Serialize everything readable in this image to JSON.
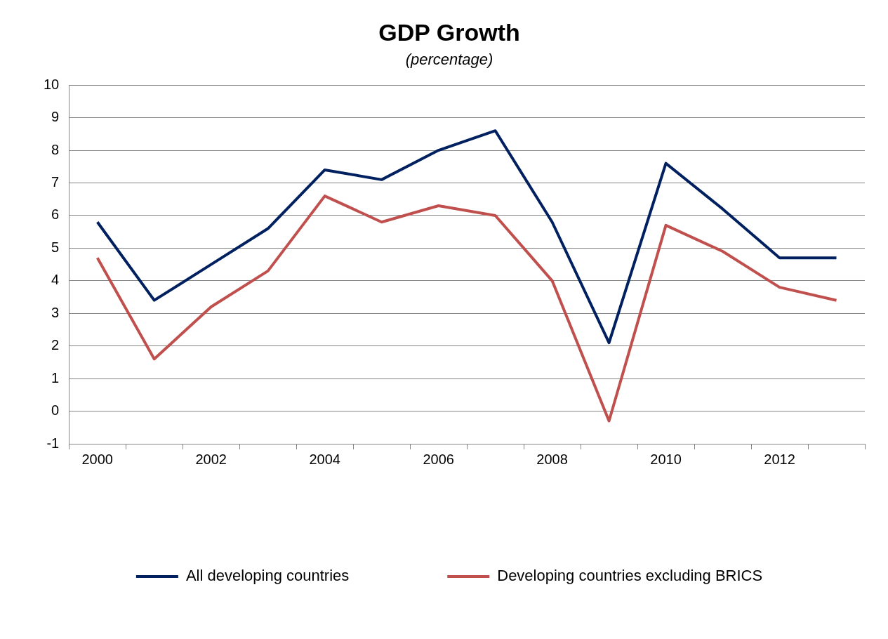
{
  "chart_data": {
    "type": "line",
    "title": "GDP Growth",
    "subtitle": "(percentage)",
    "categories": [
      "2000",
      null,
      "2002",
      null,
      "2004",
      null,
      "2006",
      null,
      "2008",
      null,
      "2010",
      null,
      "2012",
      null
    ],
    "series": [
      {
        "name": "All developing countries",
        "color": "#002060",
        "values": [
          5.8,
          3.4,
          4.5,
          5.6,
          7.4,
          7.1,
          8.0,
          8.6,
          5.8,
          2.1,
          7.6,
          6.2,
          4.7,
          4.7
        ]
      },
      {
        "name": "Developing countries excluding BRICS",
        "color": "#c0504d",
        "values": [
          4.7,
          1.6,
          3.2,
          4.3,
          6.6,
          5.8,
          6.3,
          6.0,
          4.0,
          -0.3,
          5.7,
          4.9,
          3.8,
          3.4
        ]
      }
    ],
    "ylim": [
      -1,
      10
    ],
    "yticks": [
      -1,
      0,
      1,
      2,
      3,
      4,
      5,
      6,
      7,
      8,
      9,
      10
    ],
    "grid": "y",
    "legend": "bottom",
    "marker": "none",
    "line_style": "solid"
  }
}
